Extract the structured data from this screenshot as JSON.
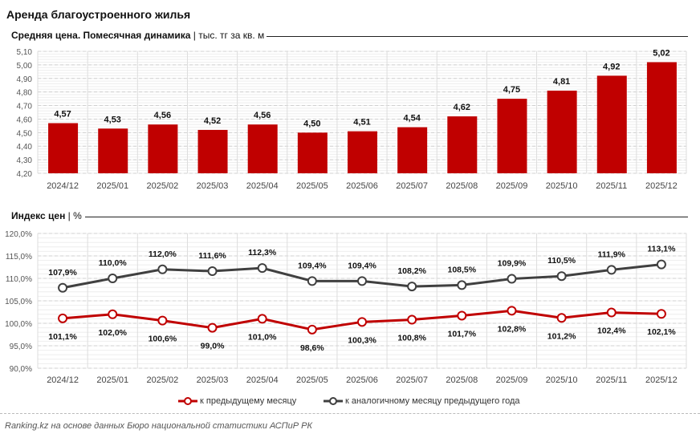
{
  "title": "Аренда благоустроенного жилья",
  "chart_data": [
    {
      "type": "bar",
      "title": "Средняя цена. Помесячная динамика",
      "unit": "тыс. тг за кв. м",
      "categories": [
        "2024/12",
        "2025/01",
        "2025/02",
        "2025/03",
        "2025/04",
        "2025/05",
        "2025/06",
        "2025/07",
        "2025/08",
        "2025/09",
        "2025/10",
        "2025/11",
        "2025/12"
      ],
      "values": [
        4.57,
        4.53,
        4.56,
        4.52,
        4.56,
        4.5,
        4.51,
        4.54,
        4.62,
        4.75,
        4.81,
        4.92,
        5.02
      ],
      "ylim": [
        4.2,
        5.1
      ],
      "yticks": [
        "4,20",
        "4,30",
        "4,40",
        "4,50",
        "4,60",
        "4,70",
        "4,80",
        "4,90",
        "5,00",
        "5,10"
      ],
      "color": "#c00000",
      "grid": true
    },
    {
      "type": "line",
      "title": "Индекс цен",
      "unit": "%",
      "categories": [
        "2024/12",
        "2025/01",
        "2025/02",
        "2025/03",
        "2025/04",
        "2025/05",
        "2025/06",
        "2025/07",
        "2025/08",
        "2025/09",
        "2025/10",
        "2025/11",
        "2025/12"
      ],
      "ylim": [
        90,
        120
      ],
      "yticks": [
        "90,0%",
        "95,0%",
        "100,0%",
        "105,0%",
        "110,0%",
        "115,0%",
        "120,0%"
      ],
      "series": [
        {
          "name": "к предыдущему месяцу",
          "color": "#c00000",
          "values": [
            101.1,
            102.0,
            100.6,
            99.0,
            101.0,
            98.6,
            100.3,
            100.8,
            101.7,
            102.8,
            101.2,
            102.4,
            102.1
          ]
        },
        {
          "name": "к аналогичному месяцу предыдущего года",
          "color": "#404040",
          "values": [
            107.9,
            110.0,
            112.0,
            111.6,
            112.3,
            109.4,
            109.4,
            108.2,
            108.5,
            109.9,
            110.5,
            111.9,
            113.1
          ]
        }
      ],
      "legend": "bottom",
      "grid": true
    }
  ],
  "source": "Ranking.kz на основе данных Бюро национальной статистики АСПиР РК"
}
